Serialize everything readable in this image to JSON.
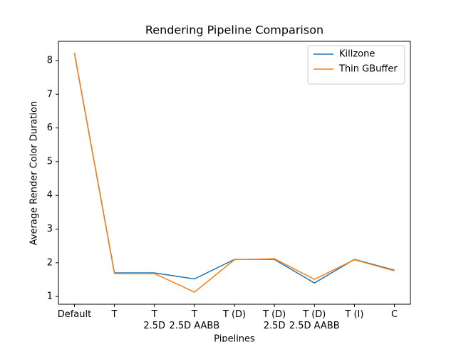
{
  "chart_data": {
    "type": "line",
    "title": "Rendering Pipeline Comparison",
    "x_label": "Pipelines",
    "y_label": "Average Render Color Duration",
    "categories": [
      "Default",
      "T",
      "T\n2.5D",
      "T\n2.5D AABB",
      "T (D)",
      "T (D)\n2.5D",
      "T (D)\n2.5D AABB",
      "T (I)",
      "C"
    ],
    "series": [
      {
        "name": "Killzone",
        "color": "#1f77b4",
        "values": [
          8.22,
          1.7,
          1.7,
          1.52,
          2.1,
          2.1,
          1.4,
          2.1,
          1.78
        ]
      },
      {
        "name": "Thin GBuffer",
        "color": "#ff7f0e",
        "values": [
          8.22,
          1.68,
          1.68,
          1.13,
          2.09,
          2.12,
          1.51,
          2.09,
          1.76
        ]
      }
    ],
    "ylim": [
      0.77,
      8.57
    ],
    "yticks": [
      1,
      2,
      3,
      4,
      5,
      6,
      7,
      8
    ],
    "grid": false,
    "legend": "upper right"
  }
}
